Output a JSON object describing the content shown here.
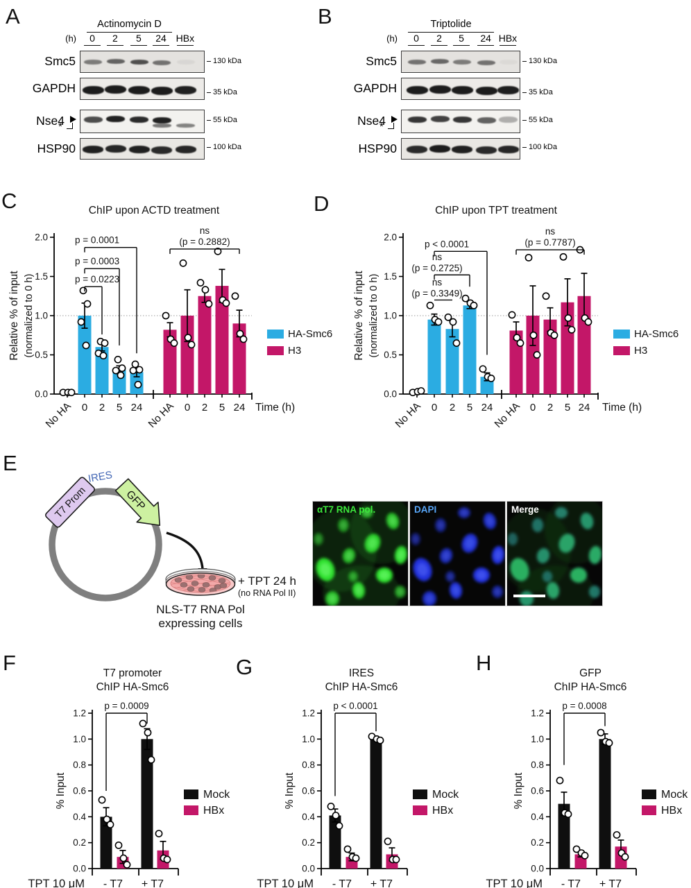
{
  "colors": {
    "cyan": "#2BACE2",
    "magenta": "#C31768",
    "black": "#0F0F0F"
  },
  "panel_letters": [
    "A",
    "B",
    "C",
    "D",
    "E",
    "F",
    "G",
    "H"
  ],
  "blots": [
    {
      "letter": "A",
      "drug": "Actinomycin D",
      "time_unit": "(h)",
      "lanes": [
        "0",
        "2",
        "5",
        "24",
        "HBx"
      ],
      "rows": [
        {
          "protein": "Smc5",
          "marker": "130 kDa",
          "bands": [
            0.5,
            0.62,
            0.72,
            0.55,
            0.05
          ]
        },
        {
          "protein": "GAPDH",
          "marker": "35 kDa",
          "bands": [
            0.97,
            0.97,
            0.97,
            0.97,
            0.95
          ]
        },
        {
          "protein": "Nse4",
          "marker": "55 kDa",
          "bands": [
            0.75,
            0.95,
            0.9,
            0.95,
            0
          ],
          "bands2": [
            0,
            0,
            0,
            0.55,
            0.5
          ],
          "note": "*"
        },
        {
          "protein": "HSP90",
          "marker": "100 kDa",
          "bands": [
            0.95,
            0.92,
            0.95,
            0.9,
            0.92
          ]
        }
      ]
    },
    {
      "letter": "B",
      "drug": "Triptolide",
      "time_unit": "(h)",
      "lanes": [
        "0",
        "2",
        "5",
        "24",
        "HBx"
      ],
      "rows": [
        {
          "protein": "Smc5",
          "marker": "130 kDa",
          "bands": [
            0.55,
            0.6,
            0.5,
            0.55,
            0.04
          ]
        },
        {
          "protein": "GAPDH",
          "marker": "35 kDa",
          "bands": [
            0.97,
            0.97,
            0.97,
            0.97,
            0.96
          ]
        },
        {
          "protein": "Nse4",
          "marker": "55 kDa",
          "bands": [
            0.85,
            0.8,
            0.85,
            0.65,
            0.3
          ],
          "bands2": [
            0,
            0,
            0,
            0,
            0
          ],
          "note": "*"
        },
        {
          "protein": "HSP90",
          "marker": "100 kDa",
          "bands": [
            0.9,
            0.97,
            0.95,
            0.9,
            0.92
          ]
        }
      ]
    }
  ],
  "chart_data": [
    {
      "id": "c",
      "type": "bar",
      "title": "ChIP upon ACTD treatment",
      "ylabel": "Relative % of input",
      "ylabel2": "(normalized to 0 h)",
      "xlabel": "Time (h)",
      "ylim": [
        0,
        2
      ],
      "yticks": [
        0,
        0.5,
        1,
        1.5,
        2
      ],
      "refline": 1,
      "series": [
        {
          "name": "HA-Smc6",
          "color_key": "cyan",
          "bars": [
            {
              "label": "No HA",
              "mean": 0.02,
              "sem": 0.01,
              "points": [
                0.02,
                0.02,
                0.02
              ]
            },
            {
              "label": "0",
              "mean": 1.0,
              "sem": 0.16,
              "points": [
                1.32,
                1.15,
                0.92,
                0.62
              ]
            },
            {
              "label": "2",
              "mean": 0.6,
              "sem": 0.05,
              "points": [
                0.67,
                0.65,
                0.52,
                0.49
              ]
            },
            {
              "label": "5",
              "mean": 0.31,
              "sem": 0.05,
              "points": [
                0.44,
                0.33,
                0.3,
                0.24
              ]
            },
            {
              "label": "24",
              "mean": 0.28,
              "sem": 0.06,
              "points": [
                0.38,
                0.31,
                0.3,
                0.12
              ]
            }
          ]
        },
        {
          "name": "H3",
          "color_key": "magenta",
          "bars": [
            {
              "label": "No HA",
              "mean": 0.82,
              "sem": 0.09,
              "points": [
                1.0,
                0.7,
                0.65
              ]
            },
            {
              "label": "0",
              "mean": 1.0,
              "sem": 0.33,
              "points": [
                1.67,
                0.72,
                0.63
              ]
            },
            {
              "label": "2",
              "mean": 1.25,
              "sem": 0.08,
              "points": [
                1.42,
                1.33,
                1.15
              ]
            },
            {
              "label": "5",
              "mean": 1.38,
              "sem": 0.21,
              "points": [
                1.82,
                1.2,
                1.16
              ]
            },
            {
              "label": "24",
              "mean": 0.9,
              "sem": 0.17,
              "points": [
                1.25,
                0.77,
                0.7
              ]
            }
          ]
        }
      ],
      "annotations": [
        {
          "lines": [
            "p = 0.0001"
          ],
          "from": 1,
          "to": 4,
          "level": 1.87,
          "drop_to": 0.52,
          "left_tick": 7
        },
        {
          "lines": [
            "p = 0.0003"
          ],
          "from": 1,
          "to": 3,
          "level": 1.6,
          "drop_to": 0.62,
          "left_tick": 7
        },
        {
          "lines": [
            "p = 0.0223"
          ],
          "from": 1,
          "to": 2,
          "level": 1.37,
          "drop_to": 0.76,
          "left_tick": 7
        },
        {
          "lines": [
            "ns",
            "(p = 0.2882)"
          ],
          "from": 5,
          "to": 9,
          "level": 1.85,
          "centered": true,
          "left_tick": 7,
          "right_tick": 7
        }
      ],
      "legend": [
        {
          "label": "HA-Smc6",
          "color_key": "cyan"
        },
        {
          "label": "H3",
          "color_key": "magenta"
        }
      ]
    },
    {
      "id": "d",
      "type": "bar",
      "title": "ChIP upon TPT treatment",
      "ylabel": "Relative % of input",
      "ylabel2": "(normalized to 0 h)",
      "xlabel": "Time (h)",
      "ylim": [
        0,
        2
      ],
      "yticks": [
        0,
        0.5,
        1,
        1.5,
        2
      ],
      "refline": 1,
      "series": [
        {
          "name": "HA-Smc6",
          "color_key": "cyan",
          "bars": [
            {
              "label": "No HA",
              "mean": 0.03,
              "sem": 0.01,
              "points": [
                0.02,
                0.03,
                0.04
              ]
            },
            {
              "label": "0",
              "mean": 0.95,
              "sem": 0.07,
              "points": [
                1.13,
                0.95,
                0.92
              ]
            },
            {
              "label": "2",
              "mean": 0.83,
              "sem": 0.1,
              "points": [
                0.98,
                0.92,
                0.65
              ]
            },
            {
              "label": "5",
              "mean": 1.13,
              "sem": 0.04,
              "points": [
                1.22,
                1.16,
                1.13
              ]
            },
            {
              "label": "24",
              "mean": 0.22,
              "sem": 0.05,
              "points": [
                0.32,
                0.22,
                0.2
              ]
            }
          ]
        },
        {
          "name": "H3",
          "color_key": "magenta",
          "bars": [
            {
              "label": "No HA",
              "mean": 0.81,
              "sem": 0.11,
              "points": [
                1.01,
                0.72,
                0.65
              ]
            },
            {
              "label": "0",
              "mean": 1.0,
              "sem": 0.38,
              "points": [
                1.74,
                0.75,
                0.5
              ]
            },
            {
              "label": "2",
              "mean": 0.95,
              "sem": 0.15,
              "points": [
                1.25,
                0.78,
                0.75
              ]
            },
            {
              "label": "5",
              "mean": 1.17,
              "sem": 0.3,
              "points": [
                1.75,
                0.97,
                0.82
              ]
            },
            {
              "label": "24",
              "mean": 1.25,
              "sem": 0.29,
              "points": [
                1.84,
                0.97,
                0.92
              ]
            }
          ]
        }
      ],
      "annotations": [
        {
          "lines": [
            "p < 0.0001"
          ],
          "from": 1,
          "to": 4,
          "level": 1.82,
          "drop_to": 0.5,
          "left_tick": 7
        },
        {
          "lines": [
            "ns",
            "(p = 0.2725)"
          ],
          "from": 1,
          "to": 3,
          "level": 1.52,
          "drop_to": 1.37,
          "left_tick": 7
        },
        {
          "lines": [
            "ns",
            "(p = 0.3349)"
          ],
          "from": 1,
          "to": 2,
          "level": 1.2
        },
        {
          "lines": [
            "ns",
            "(p = 0.7787)"
          ],
          "from": 5,
          "to": 9,
          "level": 1.84,
          "centered": true,
          "left_tick": 7,
          "right_tick": 7
        }
      ],
      "legend": [
        {
          "label": "HA-Smc6",
          "color_key": "cyan"
        },
        {
          "label": "H3",
          "color_key": "magenta"
        }
      ]
    },
    {
      "id": "f",
      "type": "bar",
      "title": "T7 promoter",
      "title2": "ChIP HA-Smc6",
      "ylabel": "% Input",
      "xlabel": "TPT 10 μM",
      "ylim": [
        0,
        1.2
      ],
      "yticks": [
        0,
        0.2,
        0.4,
        0.6,
        0.8,
        1.0,
        1.2
      ],
      "group_labels": [
        "- T7",
        "+ T7"
      ],
      "groups": [
        {
          "label": "- T7",
          "bars": [
            {
              "series": "Mock",
              "color_key": "black",
              "mean": 0.4,
              "sem": 0.07,
              "points": [
                0.53,
                0.38,
                0.34
              ]
            },
            {
              "series": "HBx",
              "color_key": "magenta",
              "mean": 0.09,
              "sem": 0.05,
              "points": [
                0.18,
                0.08,
                0.03
              ]
            }
          ]
        },
        {
          "label": "+ T7",
          "bars": [
            {
              "series": "Mock",
              "color_key": "black",
              "mean": 1.0,
              "sem": 0.08,
              "points": [
                1.12,
                1.05,
                0.84
              ]
            },
            {
              "series": "HBx",
              "color_key": "magenta",
              "mean": 0.14,
              "sem": 0.07,
              "points": [
                0.27,
                0.08,
                0.07
              ]
            }
          ]
        }
      ],
      "annotation": {
        "text": "p = 0.0009",
        "level": 1.2,
        "left_drop_to": 0.6,
        "right_drop_to": 1.12
      },
      "legend": [
        {
          "label": "Mock",
          "color_key": "black"
        },
        {
          "label": "HBx",
          "color_key": "magenta"
        }
      ]
    },
    {
      "id": "g",
      "type": "bar",
      "title": "IRES",
      "title2": "ChIP HA-Smc6",
      "ylabel": "% Input",
      "xlabel": "TPT 10 μM",
      "ylim": [
        0,
        1.2
      ],
      "yticks": [
        0,
        0.2,
        0.4,
        0.6,
        0.8,
        1.0,
        1.2
      ],
      "group_labels": [
        "- T7",
        "+ T7"
      ],
      "groups": [
        {
          "label": "- T7",
          "bars": [
            {
              "series": "Mock",
              "color_key": "black",
              "mean": 0.41,
              "sem": 0.05,
              "points": [
                0.48,
                0.41,
                0.33
              ]
            },
            {
              "series": "HBx",
              "color_key": "magenta",
              "mean": 0.09,
              "sem": 0.03,
              "points": [
                0.15,
                0.09,
                0.08
              ]
            }
          ]
        },
        {
          "label": "+ T7",
          "bars": [
            {
              "series": "Mock",
              "color_key": "black",
              "mean": 1.0,
              "sem": 0.01,
              "points": [
                1.02,
                1.0,
                0.99
              ]
            },
            {
              "series": "HBx",
              "color_key": "magenta",
              "mean": 0.11,
              "sem": 0.05,
              "points": [
                0.21,
                0.07,
                0.07
              ]
            }
          ]
        }
      ],
      "annotation": {
        "text": "p < 0.0001",
        "level": 1.2,
        "left_drop_to": 0.56,
        "right_drop_to": 1.06
      },
      "legend": [
        {
          "label": "Mock",
          "color_key": "black"
        },
        {
          "label": "HBx",
          "color_key": "magenta"
        }
      ]
    },
    {
      "id": "h",
      "type": "bar",
      "title": "GFP",
      "title2": "ChIP HA-Smc6",
      "ylabel": "% Input",
      "xlabel": "TPT 10 μM",
      "ylim": [
        0,
        1.2
      ],
      "yticks": [
        0,
        0.2,
        0.4,
        0.6,
        0.8,
        1.0,
        1.2
      ],
      "group_labels": [
        "- T7",
        "+ T7"
      ],
      "groups": [
        {
          "label": "- T7",
          "bars": [
            {
              "series": "Mock",
              "color_key": "black",
              "mean": 0.5,
              "sem": 0.09,
              "points": [
                0.68,
                0.43,
                0.42
              ]
            },
            {
              "series": "HBx",
              "color_key": "magenta",
              "mean": 0.11,
              "sem": 0.02,
              "points": [
                0.15,
                0.12,
                0.1
              ]
            }
          ]
        },
        {
          "label": "+ T7",
          "bars": [
            {
              "series": "Mock",
              "color_key": "black",
              "mean": 1.0,
              "sem": 0.04,
              "points": [
                1.05,
                0.98,
                0.97
              ]
            },
            {
              "series": "HBx",
              "color_key": "magenta",
              "mean": 0.17,
              "sem": 0.05,
              "points": [
                0.26,
                0.12,
                0.09
              ]
            }
          ]
        }
      ],
      "annotation": {
        "text": "p = 0.0008",
        "level": 1.2,
        "left_drop_to": 0.8,
        "right_drop_to": 1.1
      },
      "legend": [
        {
          "label": "Mock",
          "color_key": "black"
        },
        {
          "label": "HBx",
          "color_key": "magenta"
        }
      ]
    }
  ],
  "panel_e": {
    "plasmid": {
      "t7prom": "T7 Prom",
      "ires": "IRES",
      "gfp": "GFP"
    },
    "dish": {
      "treatment": "+ TPT 24 h",
      "treatment_note": "(no RNA Pol II)",
      "cells_line1": "NLS-T7 RNA Pol",
      "cells_line2": "expressing cells"
    },
    "microscopy_labels": [
      "αT7 RNA pol.",
      "DAPI",
      "Merge"
    ]
  }
}
